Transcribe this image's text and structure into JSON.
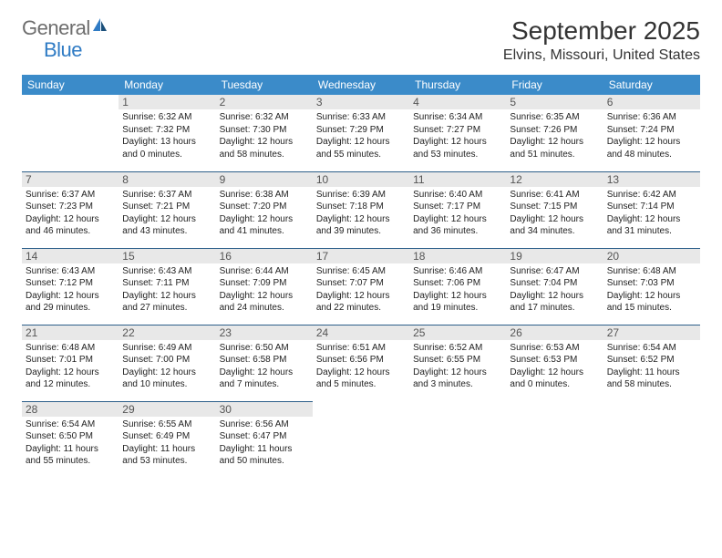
{
  "logo": {
    "general": "General",
    "blue": "Blue"
  },
  "title": "September 2025",
  "location": "Elvins, Missouri, United States",
  "day_headers": [
    "Sunday",
    "Monday",
    "Tuesday",
    "Wednesday",
    "Thursday",
    "Friday",
    "Saturday"
  ],
  "colors": {
    "header_bg": "#3b8bc9",
    "header_text": "#ffffff",
    "daynum_bg": "#e8e8e8",
    "cell_border": "#2d5f8a",
    "logo_gray": "#6d6d6d",
    "logo_blue": "#2f7bc4"
  },
  "start_weekday": 1,
  "days": [
    {
      "n": 1,
      "sunrise": "6:32 AM",
      "sunset": "7:32 PM",
      "daylight": "13 hours and 0 minutes."
    },
    {
      "n": 2,
      "sunrise": "6:32 AM",
      "sunset": "7:30 PM",
      "daylight": "12 hours and 58 minutes."
    },
    {
      "n": 3,
      "sunrise": "6:33 AM",
      "sunset": "7:29 PM",
      "daylight": "12 hours and 55 minutes."
    },
    {
      "n": 4,
      "sunrise": "6:34 AM",
      "sunset": "7:27 PM",
      "daylight": "12 hours and 53 minutes."
    },
    {
      "n": 5,
      "sunrise": "6:35 AM",
      "sunset": "7:26 PM",
      "daylight": "12 hours and 51 minutes."
    },
    {
      "n": 6,
      "sunrise": "6:36 AM",
      "sunset": "7:24 PM",
      "daylight": "12 hours and 48 minutes."
    },
    {
      "n": 7,
      "sunrise": "6:37 AM",
      "sunset": "7:23 PM",
      "daylight": "12 hours and 46 minutes."
    },
    {
      "n": 8,
      "sunrise": "6:37 AM",
      "sunset": "7:21 PM",
      "daylight": "12 hours and 43 minutes."
    },
    {
      "n": 9,
      "sunrise": "6:38 AM",
      "sunset": "7:20 PM",
      "daylight": "12 hours and 41 minutes."
    },
    {
      "n": 10,
      "sunrise": "6:39 AM",
      "sunset": "7:18 PM",
      "daylight": "12 hours and 39 minutes."
    },
    {
      "n": 11,
      "sunrise": "6:40 AM",
      "sunset": "7:17 PM",
      "daylight": "12 hours and 36 minutes."
    },
    {
      "n": 12,
      "sunrise": "6:41 AM",
      "sunset": "7:15 PM",
      "daylight": "12 hours and 34 minutes."
    },
    {
      "n": 13,
      "sunrise": "6:42 AM",
      "sunset": "7:14 PM",
      "daylight": "12 hours and 31 minutes."
    },
    {
      "n": 14,
      "sunrise": "6:43 AM",
      "sunset": "7:12 PM",
      "daylight": "12 hours and 29 minutes."
    },
    {
      "n": 15,
      "sunrise": "6:43 AM",
      "sunset": "7:11 PM",
      "daylight": "12 hours and 27 minutes."
    },
    {
      "n": 16,
      "sunrise": "6:44 AM",
      "sunset": "7:09 PM",
      "daylight": "12 hours and 24 minutes."
    },
    {
      "n": 17,
      "sunrise": "6:45 AM",
      "sunset": "7:07 PM",
      "daylight": "12 hours and 22 minutes."
    },
    {
      "n": 18,
      "sunrise": "6:46 AM",
      "sunset": "7:06 PM",
      "daylight": "12 hours and 19 minutes."
    },
    {
      "n": 19,
      "sunrise": "6:47 AM",
      "sunset": "7:04 PM",
      "daylight": "12 hours and 17 minutes."
    },
    {
      "n": 20,
      "sunrise": "6:48 AM",
      "sunset": "7:03 PM",
      "daylight": "12 hours and 15 minutes."
    },
    {
      "n": 21,
      "sunrise": "6:48 AM",
      "sunset": "7:01 PM",
      "daylight": "12 hours and 12 minutes."
    },
    {
      "n": 22,
      "sunrise": "6:49 AM",
      "sunset": "7:00 PM",
      "daylight": "12 hours and 10 minutes."
    },
    {
      "n": 23,
      "sunrise": "6:50 AM",
      "sunset": "6:58 PM",
      "daylight": "12 hours and 7 minutes."
    },
    {
      "n": 24,
      "sunrise": "6:51 AM",
      "sunset": "6:56 PM",
      "daylight": "12 hours and 5 minutes."
    },
    {
      "n": 25,
      "sunrise": "6:52 AM",
      "sunset": "6:55 PM",
      "daylight": "12 hours and 3 minutes."
    },
    {
      "n": 26,
      "sunrise": "6:53 AM",
      "sunset": "6:53 PM",
      "daylight": "12 hours and 0 minutes."
    },
    {
      "n": 27,
      "sunrise": "6:54 AM",
      "sunset": "6:52 PM",
      "daylight": "11 hours and 58 minutes."
    },
    {
      "n": 28,
      "sunrise": "6:54 AM",
      "sunset": "6:50 PM",
      "daylight": "11 hours and 55 minutes."
    },
    {
      "n": 29,
      "sunrise": "6:55 AM",
      "sunset": "6:49 PM",
      "daylight": "11 hours and 53 minutes."
    },
    {
      "n": 30,
      "sunrise": "6:56 AM",
      "sunset": "6:47 PM",
      "daylight": "11 hours and 50 minutes."
    }
  ],
  "labels": {
    "sunrise": "Sunrise:",
    "sunset": "Sunset:",
    "daylight": "Daylight:"
  }
}
